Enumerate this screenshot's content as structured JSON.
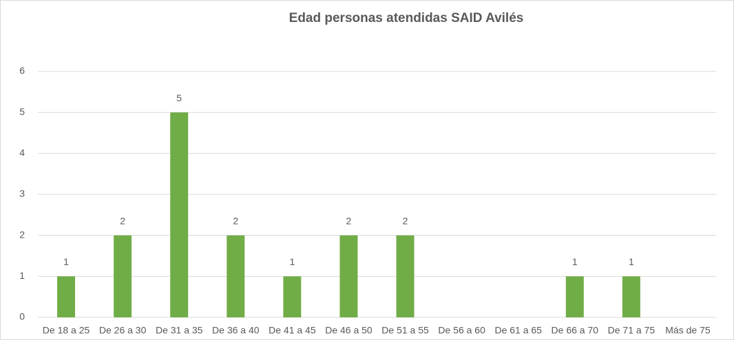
{
  "chart_data": {
    "type": "bar",
    "title": "Edad personas atendidas SAID Avilés",
    "categories": [
      "De 18 a 25",
      "De 26 a 30",
      "De 31 a 35",
      "De 36 a 40",
      "De 41 a 45",
      "De 46 a 50",
      "De 51 a 55",
      "De 56 a 60",
      "De 61 a 65",
      "De 66 a 70",
      "De 71 a 75",
      "Más de 75"
    ],
    "values": [
      1,
      2,
      5,
      2,
      1,
      2,
      2,
      null,
      null,
      1,
      1,
      null
    ],
    "color": "#70ad47",
    "ylim": [
      0,
      6
    ],
    "yticks": [
      0,
      1,
      2,
      3,
      4,
      5,
      6
    ],
    "grid": true
  }
}
